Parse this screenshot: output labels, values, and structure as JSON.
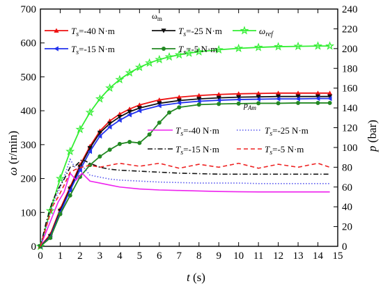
{
  "chart_data": {
    "type": "line",
    "x_axis": {
      "label": "t (s)",
      "range": [
        0,
        15
      ],
      "ticks": [
        0,
        1,
        2,
        3,
        4,
        5,
        6,
        7,
        8,
        9,
        10,
        11,
        12,
        13,
        14,
        15
      ]
    },
    "y_left": {
      "label": "ω (r/min)",
      "range": [
        0,
        700
      ],
      "ticks": [
        0,
        100,
        200,
        300,
        400,
        500,
        600,
        700
      ]
    },
    "y_right": {
      "label": "p (bar)",
      "range": [
        0,
        240
      ],
      "ticks": [
        0,
        20,
        40,
        60,
        80,
        100,
        120,
        140,
        160,
        180,
        200,
        220,
        240
      ]
    },
    "annotations": {
      "omega_group": "ωm",
      "pressure_group": "pAm"
    },
    "series": [
      {
        "name": "ωref",
        "axis": "left",
        "color": "#33ee33",
        "marker": "star",
        "style": "solid",
        "x": [
          0,
          0.5,
          1,
          1.5,
          2,
          2.5,
          3,
          3.5,
          4,
          4.5,
          5,
          5.5,
          6,
          6.5,
          7,
          7.5,
          8,
          9,
          10,
          11,
          12,
          13,
          14,
          14.6
        ],
        "y": [
          0,
          105,
          200,
          280,
          345,
          395,
          435,
          467,
          492,
          512,
          528,
          541,
          551,
          559,
          565,
          570,
          574,
          580,
          584,
          587,
          589,
          590,
          591,
          591
        ]
      },
      {
        "name": "Ts=-40 N·m",
        "axis": "left",
        "color": "#ee1111",
        "marker": "triangle",
        "style": "solid",
        "x": [
          0,
          0.5,
          1,
          1.5,
          2,
          2.5,
          3,
          3.5,
          4,
          4.5,
          5,
          6,
          7,
          8,
          9,
          10,
          11,
          12,
          13,
          14,
          14.6
        ],
        "y": [
          0,
          35,
          110,
          175,
          240,
          295,
          340,
          370,
          390,
          405,
          417,
          432,
          440,
          445,
          448,
          450,
          451,
          452,
          452,
          452,
          452
        ]
      },
      {
        "name": "Ts=-25 N·m",
        "axis": "left",
        "color": "#111111",
        "marker": "triangle-down",
        "style": "solid",
        "x": [
          0,
          0.5,
          1,
          1.5,
          2,
          2.5,
          3,
          3.5,
          4,
          4.5,
          5,
          6,
          7,
          8,
          9,
          10,
          11,
          12,
          13,
          14,
          14.6
        ],
        "y": [
          0,
          30,
          105,
          170,
          235,
          290,
          335,
          362,
          382,
          397,
          408,
          422,
          430,
          435,
          438,
          440,
          441,
          442,
          442,
          442,
          442
        ]
      },
      {
        "name": "Ts=-15 N·m",
        "axis": "left",
        "color": "#2233ee",
        "marker": "triangle-left",
        "style": "solid",
        "x": [
          0,
          0.5,
          1,
          1.5,
          2,
          2.5,
          3,
          3.5,
          4,
          4.5,
          5,
          6,
          7,
          8,
          9,
          10,
          11,
          12,
          13,
          14,
          14.6
        ],
        "y": [
          0,
          28,
          100,
          165,
          225,
          280,
          325,
          352,
          372,
          388,
          400,
          415,
          423,
          428,
          431,
          433,
          434,
          435,
          435,
          436,
          436
        ]
      },
      {
        "name": "Ts=-5 N·m",
        "axis": "left",
        "color": "#228822",
        "marker": "circle",
        "style": "solid",
        "x": [
          0,
          0.5,
          1,
          1.5,
          2,
          2.5,
          3,
          3.5,
          4,
          4.5,
          5,
          5.5,
          6,
          6.5,
          7,
          8,
          9,
          10,
          11,
          12,
          13,
          14,
          14.6
        ],
        "y": [
          0,
          25,
          95,
          150,
          205,
          240,
          265,
          285,
          302,
          308,
          305,
          330,
          365,
          395,
          410,
          418,
          420,
          421,
          422,
          422,
          423,
          423,
          423
        ]
      },
      {
        "name": "Ts=-40 N·m",
        "axis": "right",
        "color": "#ee22ee",
        "marker": "none",
        "style": "solid",
        "x": [
          0,
          0.3,
          0.6,
          0.9,
          1.2,
          1.5,
          1.8,
          2.1,
          2.5,
          3,
          3.5,
          4,
          5,
          6,
          7,
          8,
          9,
          10,
          11,
          12,
          13,
          14,
          14.6
        ],
        "y": [
          0,
          15,
          30,
          45,
          55,
          74,
          67,
          74,
          66,
          64,
          62,
          60,
          58,
          57,
          56.5,
          56,
          55.5,
          55.2,
          55,
          55,
          55,
          55,
          55
        ]
      },
      {
        "name": "Ts=-25 N·m",
        "axis": "right",
        "color": "#5555ee",
        "marker": "none",
        "style": "dotted",
        "x": [
          0,
          0.3,
          0.6,
          0.9,
          1.2,
          1.5,
          1.8,
          2.1,
          2.5,
          3,
          3.5,
          4,
          5,
          6,
          7,
          8,
          9,
          10,
          11,
          12,
          13,
          14,
          14.6
        ],
        "y": [
          0,
          20,
          40,
          55,
          70,
          88,
          78,
          82,
          72,
          70,
          68,
          67,
          66,
          65,
          64.5,
          64,
          64,
          64,
          63.5,
          63.5,
          63.5,
          63.5,
          63.5
        ]
      },
      {
        "name": "Ts=-15 N·m",
        "axis": "right",
        "color": "#111111",
        "marker": "none",
        "style": "dashdot",
        "x": [
          0,
          0.3,
          0.6,
          0.9,
          1.2,
          1.5,
          1.8,
          2.1,
          2.5,
          3,
          3.5,
          4,
          5,
          6,
          7,
          8,
          9,
          10,
          11,
          12,
          13,
          14,
          14.6
        ],
        "y": [
          0,
          25,
          45,
          58,
          68,
          80,
          82,
          88,
          84,
          80,
          78,
          77,
          76,
          75,
          74,
          73.5,
          73,
          73,
          73,
          73,
          73,
          73,
          73
        ]
      },
      {
        "name": "Ts=-5 N·m",
        "axis": "right",
        "color": "#ee2222",
        "marker": "none",
        "style": "dashed",
        "x": [
          0,
          0.3,
          0.6,
          0.9,
          1.2,
          1.5,
          1.8,
          2.1,
          2.5,
          3,
          3.5,
          4,
          5,
          6,
          7,
          8,
          9,
          10,
          11,
          12,
          13,
          14,
          14.6
        ],
        "y": [
          0,
          20,
          40,
          50,
          62,
          75,
          78,
          80,
          82,
          80,
          82,
          84,
          81,
          84,
          79,
          83,
          80,
          84,
          79,
          83,
          80,
          84,
          80
        ]
      }
    ],
    "legend_omega": [
      {
        "label": "Ts=-40 N·m",
        "series": 1
      },
      {
        "label": "Ts=-25 N·m",
        "series": 2
      },
      {
        "label": "ωref",
        "series": 0
      },
      {
        "label": "Ts=-15 N·m",
        "series": 3
      },
      {
        "label": "Ts=-5 N·m",
        "series": 4
      }
    ],
    "legend_pressure": [
      {
        "label": "Ts=-40 N·m",
        "series": 5
      },
      {
        "label": "Ts=-25 N·m",
        "series": 6
      },
      {
        "label": "Ts=-15 N·m",
        "series": 7
      },
      {
        "label": "Ts=-5 N·m",
        "series": 8
      }
    ]
  }
}
